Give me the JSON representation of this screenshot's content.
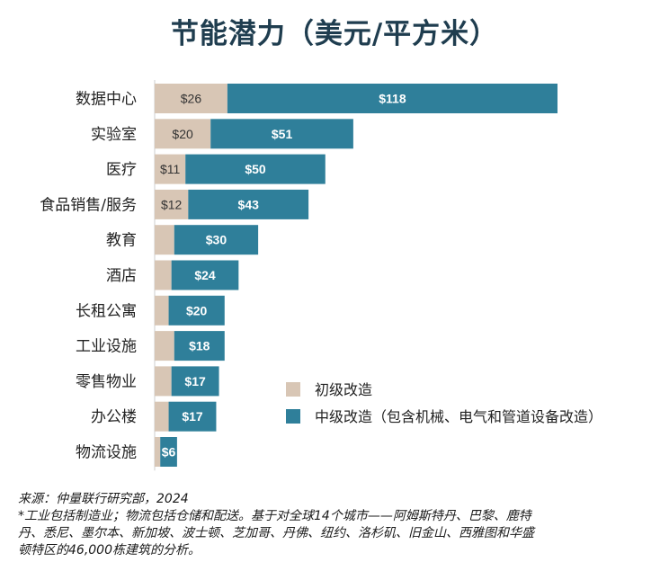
{
  "title": "节能潜力（美元/平方米）",
  "chart_data": {
    "type": "bar",
    "orientation": "horizontal",
    "stacked": true,
    "categories": [
      "数据中心",
      "实验室",
      "医疗",
      "食品销售/服务",
      "教育",
      "酒店",
      "长租公寓",
      "工业设施",
      "零售物业",
      "办公楼",
      "物流设施"
    ],
    "series": [
      {
        "name": "初级改造",
        "color": "#d8c6b5",
        "values": [
          26,
          20,
          11,
          12,
          7,
          6,
          5,
          7,
          6,
          5,
          2
        ],
        "labels": [
          "$26",
          "$20",
          "$11",
          "$12",
          "",
          "",
          "",
          "",
          "",
          "",
          ""
        ]
      },
      {
        "name": "中级改造（包含机械、电气和管道设备改造）",
        "color": "#2f7f9a",
        "values": [
          118,
          51,
          50,
          43,
          30,
          24,
          20,
          18,
          17,
          17,
          6
        ],
        "labels": [
          "$118",
          "$51",
          "$50",
          "$43",
          "$30",
          "$24",
          "$20",
          "$18",
          "$17",
          "$17",
          "$6"
        ]
      }
    ],
    "xlim": [
      0,
      144
    ],
    "grid": false,
    "legend_position": "bottom-right"
  },
  "footnote": {
    "source": "来源：仲量联行研究部，2024",
    "note_line1": "*工业包括制造业；物流包括仓储和配送。基于对全球14个城市——阿姆斯特丹、巴黎、鹿特",
    "note_line2": "丹、悉尼、墨尔本、新加坡、波士顿、芝加哥、丹佛、纽约、洛杉矶、旧金山、西雅图和华盛",
    "note_line3": "顿特区的46,000栋建筑的分析。"
  }
}
